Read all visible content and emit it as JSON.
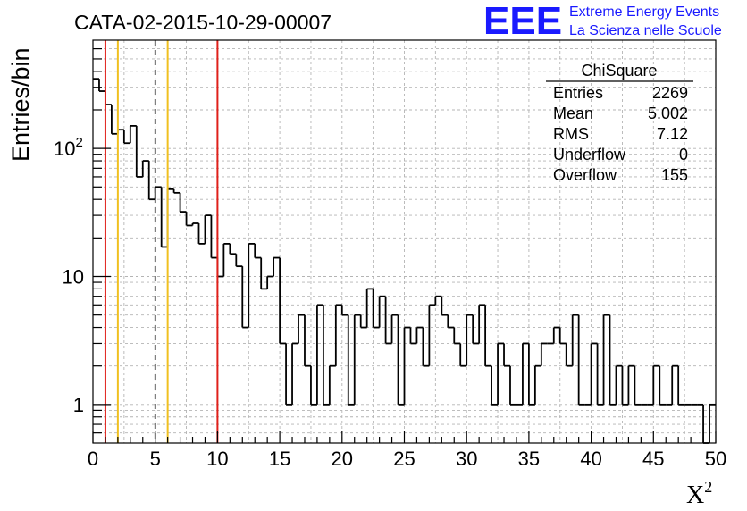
{
  "chart_data": {
    "type": "bar",
    "title": "CATA-02-2015-10-29-00007",
    "xlabel": "X",
    "xlabel_sup": "2",
    "ylabel": "Entries/bin",
    "xlim": [
      0,
      50
    ],
    "ylim": [
      0.5,
      700
    ],
    "yscale": "log",
    "grid": true,
    "bin_width": 0.5,
    "x_ticks": [
      0,
      5,
      10,
      15,
      20,
      25,
      30,
      35,
      40,
      45,
      50
    ],
    "y_ticks": [
      {
        "value": 1,
        "label": "1"
      },
      {
        "value": 10,
        "label": "10"
      },
      {
        "value": 100,
        "label": "10",
        "sup": "2"
      }
    ],
    "values": [
      350,
      280,
      220,
      130,
      140,
      110,
      150,
      60,
      80,
      40,
      50,
      17,
      48,
      45,
      32,
      25,
      26,
      18,
      30,
      14,
      10,
      18,
      15,
      12,
      4,
      18,
      14,
      8,
      10,
      14,
      3,
      1,
      3,
      5,
      2,
      1,
      6,
      1,
      2,
      6,
      5,
      1,
      5,
      4,
      8,
      4,
      7,
      3,
      5,
      1,
      4,
      3,
      4,
      2,
      6,
      7,
      5,
      4,
      3,
      2,
      5,
      3,
      6,
      2,
      1,
      3,
      2,
      1,
      1,
      3,
      1,
      2,
      3,
      3,
      4,
      3,
      2,
      5,
      1,
      1,
      3,
      1,
      5,
      1,
      2,
      1,
      2,
      1,
      1,
      1,
      2,
      1,
      1,
      2,
      1,
      1,
      1,
      1,
      0,
      1
    ],
    "lines": [
      {
        "x": 1,
        "color": "#e0201a",
        "style": "solid"
      },
      {
        "x": 2,
        "color": "#f0c020",
        "style": "solid"
      },
      {
        "x": 5,
        "color": "#000000",
        "style": "dashed"
      },
      {
        "x": 6,
        "color": "#f0c020",
        "style": "solid"
      },
      {
        "x": 10,
        "color": "#e0201a",
        "style": "solid"
      }
    ],
    "legend": {
      "placement": "top-right",
      "title": "ChiSquare",
      "rows": [
        {
          "label": "Entries",
          "value": "2269"
        },
        {
          "label": "Mean",
          "value": "5.002"
        },
        {
          "label": "RMS",
          "value": "7.12"
        },
        {
          "label": "Underflow",
          "value": "0"
        },
        {
          "label": "Overflow",
          "value": "155"
        }
      ]
    }
  },
  "logo": {
    "mark": "EEE",
    "line1": "Extreme Energy Events",
    "line2": "La Scienza nelle Scuole",
    "color": "#1a1aff"
  }
}
